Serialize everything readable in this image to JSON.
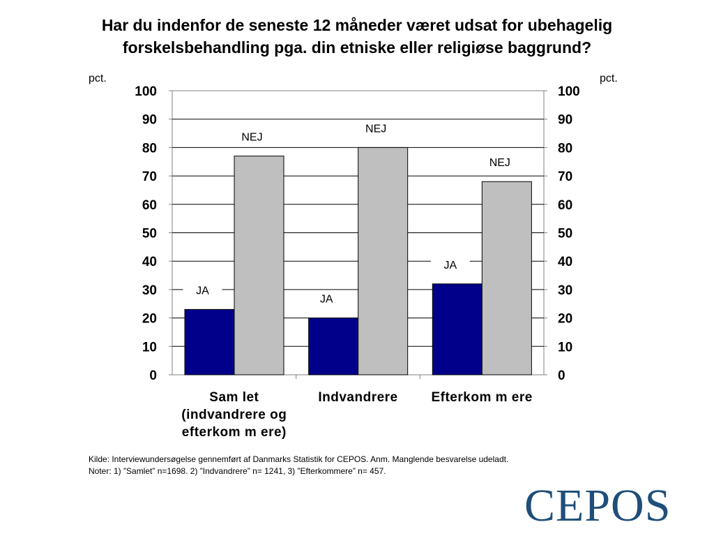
{
  "title_lines": [
    "Har du indenfor de seneste 12 måneder været udsat for ubehagelig",
    "forskelsbehandling pga. din etniske eller religiøse baggrund?"
  ],
  "chart_data": {
    "type": "bar",
    "title": "Har du indenfor de seneste 12 måneder været udsat for ubehagelig forskelsbehandling pga. din etniske eller religiøse baggrund?",
    "ylabel_left": "pct.",
    "ylabel_right": "pct.",
    "ylim": [
      0,
      100
    ],
    "yticks": [
      0,
      10,
      20,
      30,
      40,
      50,
      60,
      70,
      80,
      90,
      100
    ],
    "grid": true,
    "categories": [
      [
        "Sam let",
        "(indvandrere og",
        "efterkom m ere)"
      ],
      [
        "Indvandrere"
      ],
      [
        "Efterkom m ere"
      ]
    ],
    "series": [
      {
        "name": "JA",
        "color": "#00008b",
        "values": [
          23,
          20,
          32
        ]
      },
      {
        "name": "NEJ",
        "color": "#bfbfbf",
        "values": [
          77,
          80,
          68
        ]
      }
    ]
  },
  "footnote": {
    "source": "Kilde: Interviewundersøgelse gennemført af Danmarks Statistik for CEPOS. Anm. Manglende besvarelse udeladt.",
    "notes": "Noter: 1) ”Samlet” n=1698. 2) ”Indvandrere” n= 1241, 3) ”Efterkommere” n= 457."
  },
  "logo": {
    "text": "CEPOS",
    "color": "#1f4e79"
  }
}
